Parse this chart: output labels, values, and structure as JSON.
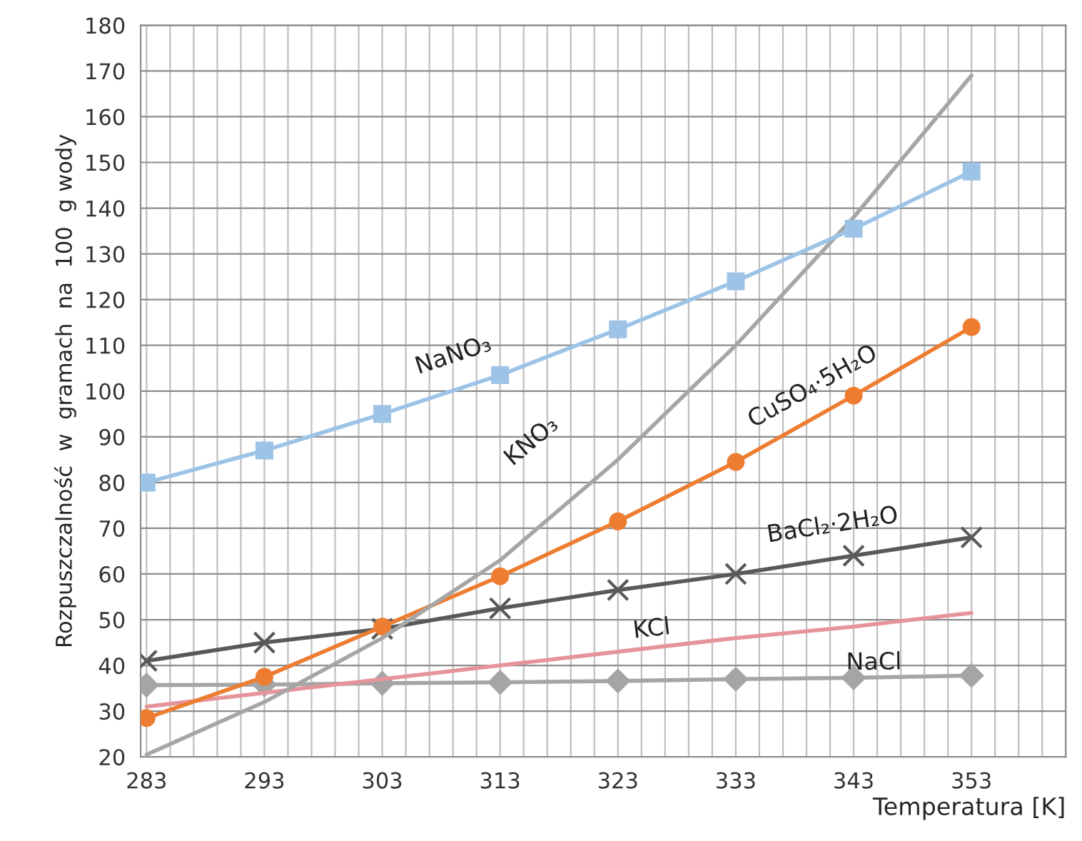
{
  "chart_data": {
    "type": "line",
    "xlabel": "Temperatura [K]",
    "ylabel": "Rozpuszczalność  w  gramach  na  100  g wody",
    "x": [
      283,
      293,
      303,
      313,
      323,
      333,
      343,
      353
    ],
    "xlim": [
      282.5,
      361
    ],
    "xticks": [
      283,
      293,
      303,
      313,
      323,
      333,
      343,
      353
    ],
    "ylim": [
      20,
      180
    ],
    "yticks": [
      20,
      30,
      40,
      50,
      60,
      70,
      80,
      90,
      100,
      110,
      120,
      130,
      140,
      150,
      160,
      170,
      180
    ],
    "grid": true,
    "legend": false,
    "line_style": "solid",
    "series": [
      {
        "name": "NaNO₃",
        "color": "#9dc3e6",
        "marker": "square",
        "values": [
          80,
          87,
          95,
          103.5,
          113.5,
          124,
          135.5,
          148
        ]
      },
      {
        "name": "KNO₃",
        "color": "#a6a6a6",
        "marker": "none",
        "values": [
          20.5,
          32,
          46,
          63,
          85,
          110,
          138,
          169
        ]
      },
      {
        "name": "CuSO₄·5H₂O",
        "color": "#ed7d31",
        "marker": "circle",
        "values": [
          28.5,
          37.5,
          48.5,
          59.5,
          71.5,
          84.5,
          99,
          114
        ]
      },
      {
        "name": "BaCl₂·2H₂O",
        "color": "#595959",
        "marker": "cross",
        "values": [
          41,
          45,
          48,
          52.5,
          56.5,
          60,
          64,
          68
        ]
      },
      {
        "name": "KCl",
        "color": "#e6949c",
        "marker": "none",
        "values": [
          31,
          34,
          37,
          40,
          43,
          46,
          48.5,
          51.5
        ]
      },
      {
        "name": "NaCl",
        "color": "#a5a5a5",
        "marker": "diamond",
        "values": [
          35.7,
          35.8,
          36.1,
          36.3,
          36.6,
          37,
          37.3,
          37.8
        ]
      }
    ]
  }
}
